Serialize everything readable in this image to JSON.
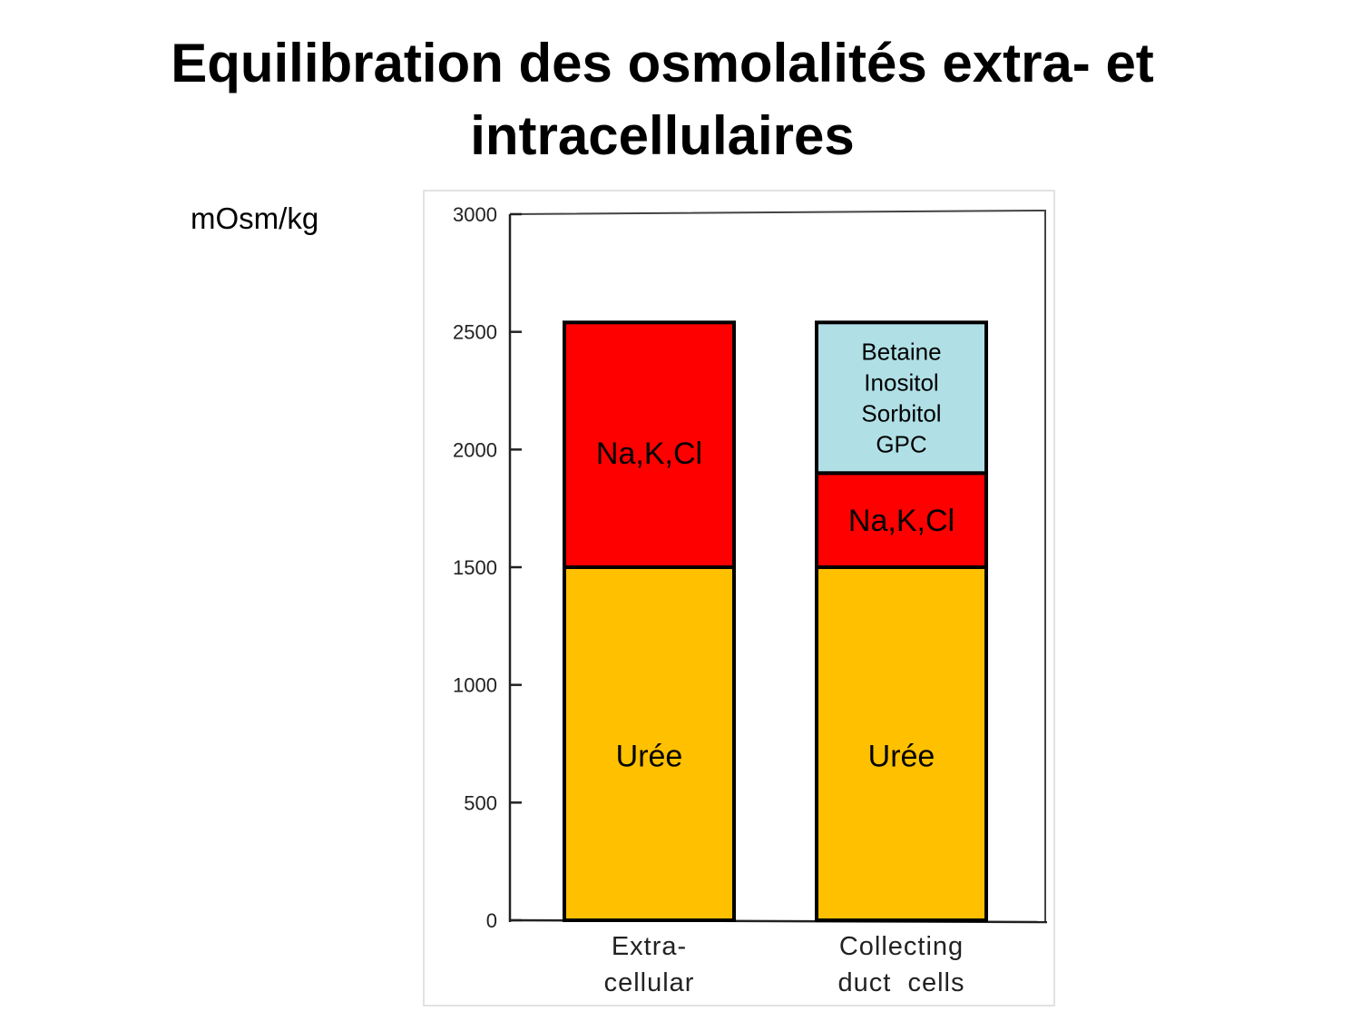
{
  "slide": {
    "title_line1": "Equilibration des osmolalités extra- et",
    "title_line2": "intracellulaires"
  },
  "chart_data": {
    "type": "bar",
    "stacked": true,
    "ylabel": "mOsm/kg",
    "ylim": [
      0,
      3000
    ],
    "yticks": [
      0,
      500,
      1000,
      1500,
      2000,
      2500,
      3000
    ],
    "grid": false,
    "categories": [
      {
        "lines": [
          "Extra-",
          "cellular"
        ]
      },
      {
        "lines": [
          "Collecting",
          "duct  cells"
        ]
      }
    ],
    "bars": [
      {
        "segments": [
          {
            "label": [
              "Urée"
            ],
            "from": 0,
            "to": 1500,
            "color": "#FFC000"
          },
          {
            "label": [
              "Na,K,Cl"
            ],
            "from": 1500,
            "to": 2540,
            "color": "#FF0000"
          }
        ]
      },
      {
        "segments": [
          {
            "label": [
              "Urée"
            ],
            "from": 0,
            "to": 1500,
            "color": "#FFC000"
          },
          {
            "label": [
              "Na,K,Cl"
            ],
            "from": 1500,
            "to": 1900,
            "color": "#FF0000"
          },
          {
            "label": [
              "Betaine",
              "Inositol",
              "Sorbitol",
              "GPC"
            ],
            "from": 1900,
            "to": 2540,
            "color": "#B0E0E6"
          }
        ]
      }
    ]
  }
}
